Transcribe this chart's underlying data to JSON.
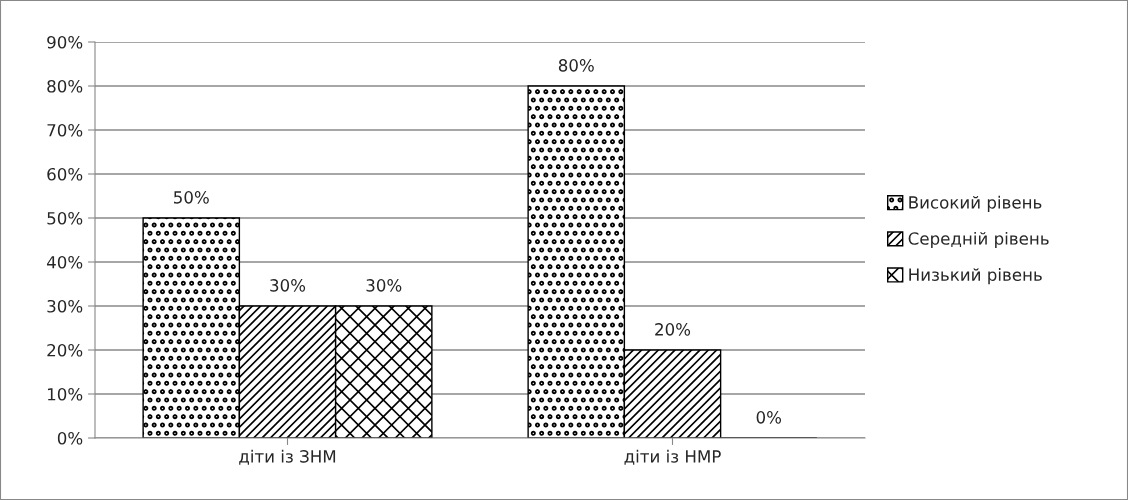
{
  "chart_data": {
    "type": "bar",
    "categories": [
      "діти із ЗНМ",
      "діти із НМР"
    ],
    "series": [
      {
        "name": "Високий рівень",
        "color": "#000000",
        "values": [
          50,
          80
        ],
        "value_labels": [
          "50%",
          "80%"
        ]
      },
      {
        "name": "Середній рівень",
        "color": "#000000",
        "values": [
          30,
          20
        ],
        "value_labels": [
          "30%",
          "20%"
        ]
      },
      {
        "name": "Низький рівень",
        "color": "#000000",
        "values": [
          30,
          0
        ],
        "value_labels": [
          "30%",
          "0%"
        ]
      }
    ],
    "ylim": [
      0,
      90
    ],
    "yticks": [
      {
        "value": 0,
        "label": "0%"
      },
      {
        "value": 10,
        "label": "10%"
      },
      {
        "value": 20,
        "label": "20%"
      },
      {
        "value": 30,
        "label": "30%"
      },
      {
        "value": 40,
        "label": "40%"
      },
      {
        "value": 50,
        "label": "50%"
      },
      {
        "value": 60,
        "label": "60%"
      },
      {
        "value": 70,
        "label": "70%"
      },
      {
        "value": 80,
        "label": "80%"
      },
      {
        "value": 90,
        "label": "90%"
      }
    ],
    "grid": "y",
    "legend": "right"
  }
}
